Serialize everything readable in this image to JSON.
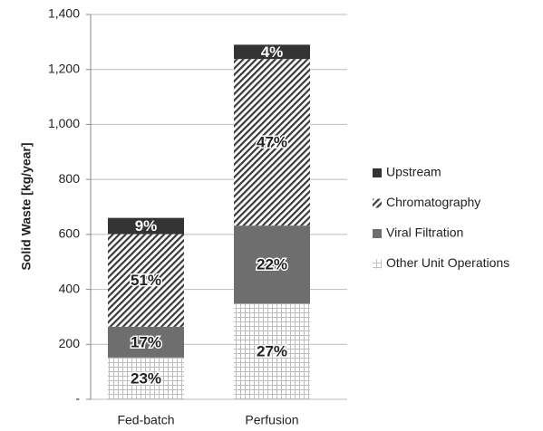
{
  "chart_data": {
    "type": "stacked_bar",
    "ylabel": "Solid Waste [kg/year]",
    "categories": [
      "Fed-batch",
      "Perfusion"
    ],
    "series": [
      {
        "name": "Other Unit Operations",
        "color": "#bdbdbd",
        "values": [
          152,
          348
        ],
        "labels": [
          "23%",
          "27%"
        ]
      },
      {
        "name": "Viral Filtration",
        "color": "#6e6e6e",
        "values": [
          112,
          284
        ],
        "labels": [
          "17%",
          "22%"
        ]
      },
      {
        "name": "Chromatography",
        "color": "#3a3a3a",
        "values": [
          337,
          606
        ],
        "labels": [
          "51%",
          "47%"
        ]
      },
      {
        "name": "Upstream",
        "color": "#333333",
        "values": [
          59,
          52
        ],
        "labels": [
          "9%",
          "4%"
        ]
      }
    ],
    "ylim": [
      0,
      1400
    ],
    "yticks": [
      {
        "value": 0,
        "label": "-"
      },
      200,
      400,
      600,
      800,
      {
        "value": 1000,
        "label": "1,000"
      },
      {
        "value": 1200,
        "label": "1,200"
      },
      {
        "value": 1400,
        "label": "1,400"
      }
    ],
    "grid": true
  }
}
